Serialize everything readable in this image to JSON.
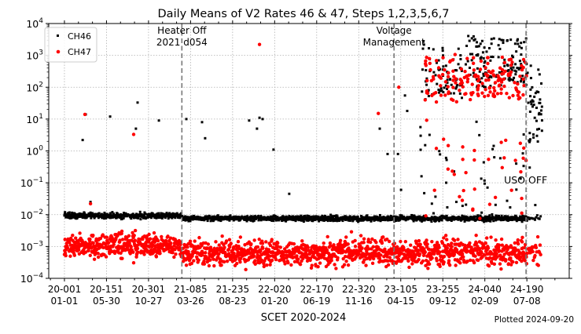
{
  "chart_data": {
    "type": "scatter",
    "title": "Daily Means of V2 Rates 46 & 47, Steps 1,2,3,5,6,7",
    "xlabel": "SCET 2020-2024",
    "ylabel": "",
    "footnote": "Plotted 2024-09-20",
    "x_units": "days since 2020-001",
    "xlim": [
      -56,
      1801
    ],
    "yscale": "log",
    "ylim": [
      0.0001,
      10000
    ],
    "grid": true,
    "legend_position": "top-left",
    "yticks": [
      {
        "base": "10",
        "exp": "−4",
        "value": 0.0001
      },
      {
        "base": "10",
        "exp": "−3",
        "value": 0.001
      },
      {
        "base": "10",
        "exp": "−2",
        "value": 0.01
      },
      {
        "base": "10",
        "exp": "−1",
        "value": 0.1
      },
      {
        "base": "10",
        "exp": "0",
        "value": 1
      },
      {
        "base": "10",
        "exp": "1",
        "value": 10
      },
      {
        "base": "10",
        "exp": "2",
        "value": 100
      },
      {
        "base": "10",
        "exp": "3",
        "value": 1000
      },
      {
        "base": "10",
        "exp": "4",
        "value": 10000
      }
    ],
    "xticks": [
      {
        "day": 0,
        "line1": "20-001",
        "line2": "01-01"
      },
      {
        "day": 150,
        "line1": "20-151",
        "line2": "05-30"
      },
      {
        "day": 300,
        "line1": "20-301",
        "line2": "10-27"
      },
      {
        "day": 450,
        "line1": "21-085",
        "line2": "03-26"
      },
      {
        "day": 600,
        "line1": "21-235",
        "line2": "08-23"
      },
      {
        "day": 750,
        "line1": "22-020",
        "line2": "01-20"
      },
      {
        "day": 900,
        "line1": "22-170",
        "line2": "06-19"
      },
      {
        "day": 1050,
        "line1": "22-320",
        "line2": "11-16"
      },
      {
        "day": 1200,
        "line1": "23-105",
        "line2": "04-15"
      },
      {
        "day": 1350,
        "line1": "23-255",
        "line2": "09-12"
      },
      {
        "day": 1500,
        "line1": "24-040",
        "line2": "02-09"
      },
      {
        "day": 1650,
        "line1": "24-190",
        "line2": "07-08"
      }
    ],
    "events": [
      {
        "day": 419,
        "label_lines": [
          "Heater Off",
          "2021 d054"
        ],
        "label_pos": "top"
      },
      {
        "day": 1176,
        "label_lines": [
          "Voltage",
          "Management"
        ],
        "label_pos": "top"
      },
      {
        "day": 1647,
        "label_lines": [
          "USO OFF"
        ],
        "label_pos": "middle-left"
      }
    ],
    "series": [
      {
        "name": "CH46",
        "color": "#000000",
        "marker": "square",
        "baseline": [
          {
            "start": 0,
            "end": 419,
            "median": 0.0092,
            "sd_decades": 0.045
          },
          {
            "start": 420,
            "end": 1650,
            "median": 0.0076,
            "sd_decades": 0.04
          },
          {
            "start": 1655,
            "end": 1700,
            "median": 0.0075,
            "sd_decades": 0.04,
            "every": 4
          }
        ],
        "clusters": [
          {
            "start": 1275,
            "end": 1420,
            "log_min": 1.6,
            "log_max": 3.5,
            "count": 70
          },
          {
            "start": 1420,
            "end": 1650,
            "log_min": 2.0,
            "log_max": 3.65,
            "count": 140
          },
          {
            "start": 1652,
            "end": 1705,
            "log_min": 0.2,
            "log_max": 2.7,
            "count": 45
          },
          {
            "start": 1270,
            "end": 1650,
            "log_min": -2.0,
            "log_max": 1.0,
            "count": 40
          }
        ],
        "points": [
          [
            65,
            2.2
          ],
          [
            76,
            14
          ],
          [
            93,
            0.025
          ],
          [
            163,
            12
          ],
          [
            255,
            5
          ],
          [
            261,
            33
          ],
          [
            337,
            9
          ],
          [
            435,
            10
          ],
          [
            491,
            8
          ],
          [
            502,
            2.5
          ],
          [
            659,
            9
          ],
          [
            687,
            5
          ],
          [
            696,
            11
          ],
          [
            707,
            10
          ],
          [
            746,
            1.1
          ],
          [
            802,
            0.045
          ],
          [
            1125,
            5
          ],
          [
            1153,
            0.8
          ],
          [
            1190,
            0.8
          ],
          [
            1201,
            0.06
          ],
          [
            1215,
            55
          ],
          [
            1223,
            18
          ],
          [
            1271,
            3
          ],
          [
            1274,
            0.16
          ],
          [
            1660,
            0.3
          ],
          [
            1680,
            0.02
          ]
        ]
      },
      {
        "name": "CH47",
        "color": "#ff0000",
        "marker": "circle",
        "baseline": [
          {
            "start": 0,
            "end": 419,
            "median": 0.0011,
            "sd_decades": 0.18
          },
          {
            "start": 420,
            "end": 1650,
            "median": 0.00065,
            "sd_decades": 0.2
          },
          {
            "start": 1655,
            "end": 1700,
            "median": 0.0006,
            "sd_decades": 0.2,
            "every": 2
          }
        ],
        "clusters": [
          {
            "start": 1285,
            "end": 1420,
            "log_min": 1.5,
            "log_max": 3.1,
            "count": 55
          },
          {
            "start": 1420,
            "end": 1650,
            "log_min": 1.6,
            "log_max": 3.0,
            "count": 110
          },
          {
            "start": 1280,
            "end": 1645,
            "log_min": -2.2,
            "log_max": 1.2,
            "count": 35
          }
        ],
        "points": [
          [
            73,
            14
          ],
          [
            93,
            0.022
          ],
          [
            247,
            3.3
          ],
          [
            696,
            2200
          ],
          [
            1120,
            15
          ],
          [
            1193,
            100
          ],
          [
            1327,
            1.2
          ],
          [
            1647,
            0.5
          ]
        ]
      }
    ]
  }
}
